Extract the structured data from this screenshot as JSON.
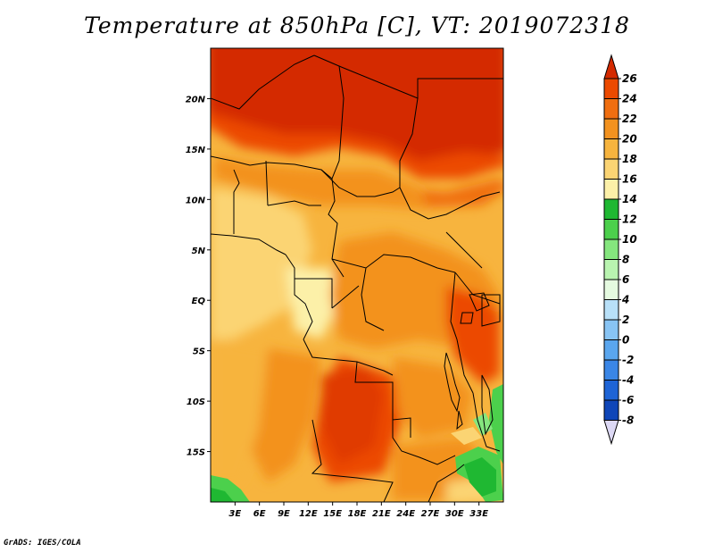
{
  "title": "Temperature at 850hPa [C], VT: 2019072318",
  "footer": "GrADS: IGES/COLA",
  "map": {
    "lon_range": [
      0,
      36
    ],
    "lat_range": [
      -20,
      25
    ],
    "lon_ticks": [
      "3E",
      "6E",
      "9E",
      "12E",
      "15E",
      "18E",
      "21E",
      "24E",
      "27E",
      "30E",
      "33E"
    ],
    "lat_ticks": [
      "20N",
      "15N",
      "10N",
      "5N",
      "EQ",
      "5S",
      "10S",
      "15S"
    ]
  },
  "colorbar": {
    "levels": [
      "26",
      "24",
      "22",
      "20",
      "18",
      "16",
      "14",
      "12",
      "10",
      "8",
      "6",
      "4",
      "2",
      "0",
      "-2",
      "-4",
      "-6",
      "-8"
    ],
    "colors": [
      "#d42a00",
      "#ec4a00",
      "#f06e10",
      "#f3921f",
      "#f7b43e",
      "#fbd473",
      "#fcf0a8",
      "#1fb832",
      "#4cd04c",
      "#85e67e",
      "#b9f4b0",
      "#e5fae0",
      "#b8e0f8",
      "#88c4f4",
      "#5aa6ee",
      "#3a86e6",
      "#1e64d6",
      "#0f46b8",
      "#06289a",
      "#000a66",
      "#dcd8f4"
    ]
  }
}
